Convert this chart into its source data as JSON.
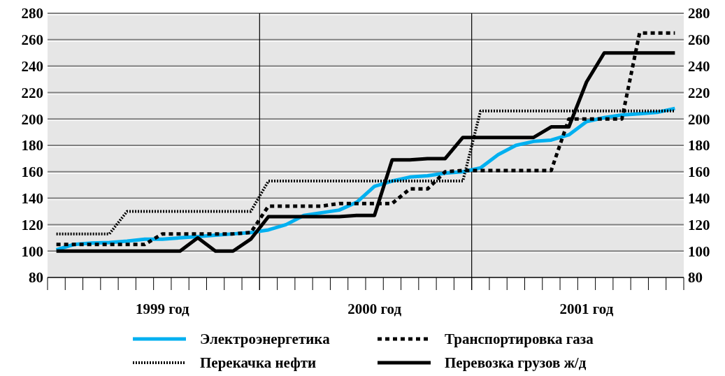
{
  "chart_data": {
    "type": "line",
    "categories": [
      null,
      null,
      null,
      null,
      null,
      null,
      "1999 год",
      null,
      null,
      null,
      null,
      null,
      null,
      null,
      null,
      null,
      null,
      null,
      "2000 год",
      null,
      null,
      null,
      null,
      null,
      null,
      null,
      null,
      null,
      null,
      null,
      "2001 год",
      null,
      null,
      null,
      null,
      null
    ],
    "ylim": [
      80,
      280
    ],
    "yticks": [
      80,
      100,
      120,
      140,
      160,
      180,
      200,
      220,
      240,
      260,
      280
    ],
    "y2lim": [
      80,
      280
    ],
    "y2ticks": [
      80,
      100,
      120,
      140,
      160,
      180,
      200,
      220,
      240,
      260,
      280
    ],
    "grid": "y",
    "legend": "bottom",
    "series": [
      {
        "name": "Электроэнергетика",
        "color": "#00b0f0",
        "line_style": "solid",
        "values": [
          101,
          105,
          106,
          106.5,
          107.5,
          109,
          109,
          110,
          111,
          112,
          113,
          114,
          116,
          120,
          127,
          129,
          131,
          137,
          149,
          153,
          156,
          157,
          159,
          160,
          163,
          173,
          180,
          183,
          184,
          188,
          198,
          201,
          203,
          204,
          205,
          208
        ]
      },
      {
        "name": "Транспортировка газа",
        "color": "#000000",
        "line_style": "dashed",
        "values": [
          105,
          105,
          105,
          105,
          105,
          105,
          113,
          113,
          113,
          113,
          113,
          114,
          134,
          134,
          134,
          134,
          136,
          136,
          136,
          136,
          147,
          147,
          160,
          161,
          161,
          161,
          161,
          161,
          161,
          200,
          200,
          200,
          200,
          265,
          265,
          265
        ]
      },
      {
        "name": "Перекачка нефти",
        "color": "#000000",
        "line_style": "dotted",
        "values": [
          113,
          113,
          113,
          113,
          130,
          130,
          130,
          130,
          130,
          130,
          130,
          130,
          153,
          153,
          153,
          153,
          153,
          153,
          153,
          153,
          153,
          153,
          153,
          153,
          206,
          206,
          206,
          206,
          206,
          206,
          206,
          206,
          206,
          206,
          206,
          206
        ]
      },
      {
        "name": "Перевозка грузов ж/д",
        "color": "#000000",
        "line_style": "solid",
        "values": [
          100,
          100,
          100,
          100,
          100,
          100,
          100,
          100,
          110,
          100,
          100,
          109,
          126,
          126,
          126,
          126,
          126,
          127,
          127,
          169,
          169,
          170,
          170,
          186,
          186,
          186,
          186,
          186,
          194,
          194,
          228,
          250,
          250,
          250,
          250,
          250
        ]
      }
    ]
  }
}
